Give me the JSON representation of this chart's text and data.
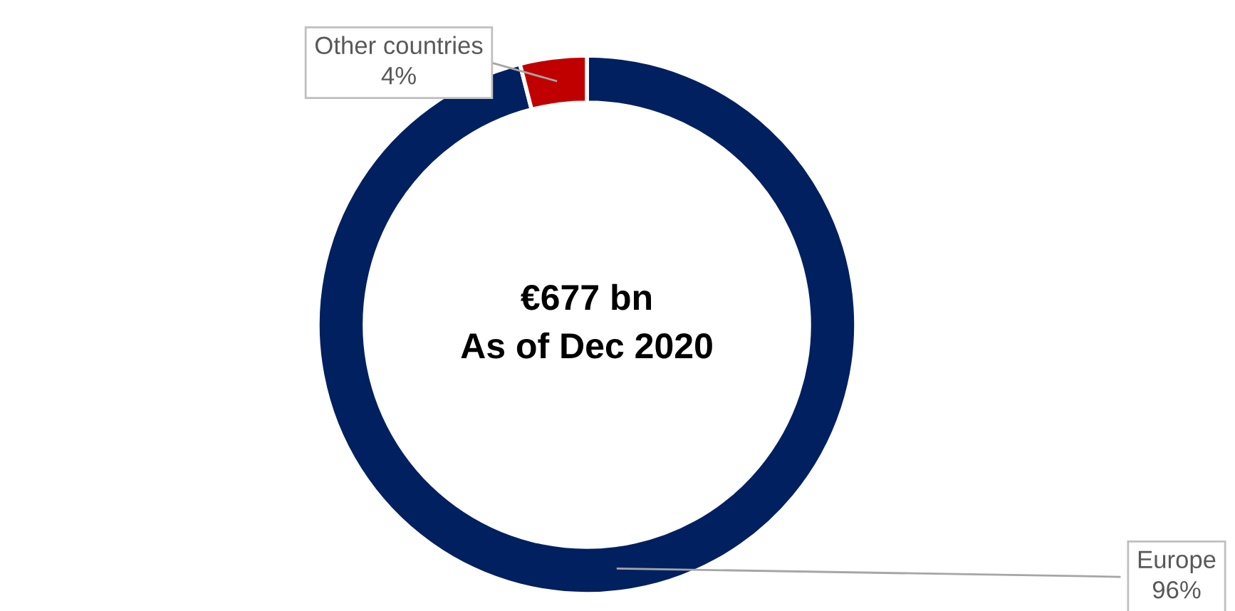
{
  "chart_data": {
    "type": "donut",
    "categories": [
      "Europe",
      "Other countries"
    ],
    "values": [
      96,
      4
    ],
    "value_labels": [
      "96%",
      "4%"
    ],
    "colors": [
      "#002060",
      "#c00000"
    ],
    "annotations": [
      "€677 bn",
      "As of Dec 2020"
    ],
    "legend": false
  }
}
